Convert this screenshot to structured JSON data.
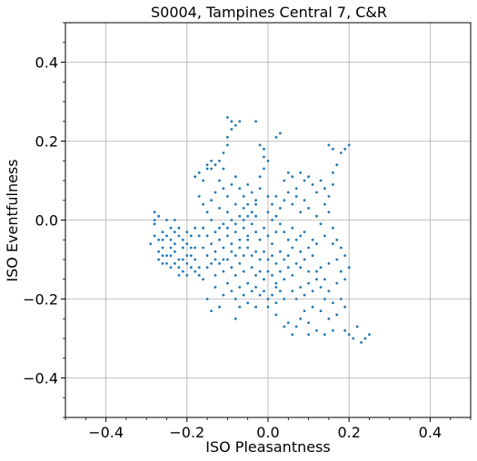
{
  "chart_data": {
    "type": "scatter",
    "title": "S0004, Tampines Central 7, C&R",
    "xlabel": "ISO Pleasantness",
    "ylabel": "ISO Eventfulness",
    "xlim": [
      -0.5,
      0.5
    ],
    "ylim": [
      -0.5,
      0.5
    ],
    "xticks": [
      -0.4,
      -0.2,
      0.0,
      0.2,
      0.4
    ],
    "yticks": [
      -0.4,
      -0.2,
      0.0,
      0.2,
      0.4
    ],
    "xtick_labels": [
      "−0.4",
      "−0.2",
      "0.0",
      "0.2",
      "0.4"
    ],
    "ytick_labels": [
      "−0.4",
      "−0.2",
      "0.0",
      "0.2",
      "0.4"
    ],
    "grid": true,
    "color": "#1f77b4",
    "points": [
      [
        -0.28,
        0.02
      ],
      [
        -0.27,
        0.01
      ],
      [
        -0.28,
        -0.01
      ],
      [
        -0.26,
        -0.03
      ],
      [
        -0.25,
        0.0
      ],
      [
        -0.29,
        -0.06
      ],
      [
        -0.27,
        -0.08
      ],
      [
        -0.26,
        -0.05
      ],
      [
        -0.24,
        -0.02
      ],
      [
        -0.23,
        0.0
      ],
      [
        -0.25,
        -0.09
      ],
      [
        -0.23,
        -0.06
      ],
      [
        -0.22,
        -0.04
      ],
      [
        -0.21,
        -0.07
      ],
      [
        -0.22,
        -0.1
      ],
      [
        -0.24,
        -0.12
      ],
      [
        -0.2,
        -0.09
      ],
      [
        -0.19,
        -0.12
      ],
      [
        -0.21,
        -0.13
      ],
      [
        -0.23,
        -0.11
      ],
      [
        -0.18,
        -0.1
      ],
      [
        -0.19,
        -0.07
      ],
      [
        -0.2,
        -0.03
      ],
      [
        -0.27,
        -0.1
      ],
      [
        -0.28,
        -0.04
      ],
      [
        -0.26,
        -0.07
      ],
      [
        -0.25,
        -0.04
      ],
      [
        -0.24,
        -0.07
      ],
      [
        -0.23,
        -0.08
      ],
      [
        -0.22,
        -0.12
      ],
      [
        -0.21,
        -0.1
      ],
      [
        -0.2,
        -0.14
      ],
      [
        -0.18,
        -0.13
      ],
      [
        -0.17,
        -0.12
      ],
      [
        -0.18,
        -0.07
      ],
      [
        -0.2,
        -0.06
      ],
      [
        -0.19,
        -0.04
      ],
      [
        -0.26,
        -0.09
      ],
      [
        -0.25,
        -0.11
      ],
      [
        -0.22,
        -0.14
      ],
      [
        -0.24,
        -0.05
      ],
      [
        -0.22,
        -0.02
      ],
      [
        -0.28,
        0.0
      ],
      [
        -0.27,
        -0.05
      ],
      [
        -0.26,
        -0.11
      ],
      [
        -0.24,
        -0.09
      ],
      [
        -0.21,
        -0.05
      ],
      [
        -0.19,
        -0.09
      ],
      [
        -0.23,
        -0.03
      ],
      [
        -0.2,
        -0.11
      ],
      [
        -0.15,
        0.14
      ],
      [
        -0.14,
        0.15
      ],
      [
        -0.15,
        0.13
      ],
      [
        -0.14,
        0.13
      ],
      [
        -0.13,
        0.14
      ],
      [
        -0.16,
        0.1
      ],
      [
        -0.17,
        0.12
      ],
      [
        -0.18,
        0.11
      ],
      [
        -0.1,
        0.26
      ],
      [
        -0.09,
        0.25
      ],
      [
        -0.08,
        0.24
      ],
      [
        -0.07,
        0.25
      ],
      [
        -0.09,
        0.23
      ],
      [
        -0.1,
        0.21
      ],
      [
        -0.1,
        0.19
      ],
      [
        -0.11,
        0.17
      ],
      [
        -0.12,
        0.15
      ],
      [
        -0.11,
        0.13
      ],
      [
        -0.03,
        0.25
      ],
      [
        -0.02,
        0.19
      ],
      [
        -0.01,
        0.18
      ],
      [
        -0.01,
        0.16
      ],
      [
        0.0,
        0.15
      ],
      [
        -0.01,
        0.13
      ],
      [
        -0.02,
        0.11
      ],
      [
        0.03,
        0.22
      ],
      [
        0.02,
        0.21
      ],
      [
        0.15,
        0.19
      ],
      [
        0.16,
        0.18
      ],
      [
        0.18,
        0.17
      ],
      [
        0.2,
        0.19
      ],
      [
        0.19,
        0.18
      ],
      [
        0.17,
        0.14
      ],
      [
        0.16,
        0.12
      ],
      [
        0.16,
        0.09
      ],
      [
        0.15,
        0.06
      ],
      [
        0.14,
        0.08
      ],
      [
        0.1,
        0.11
      ],
      [
        0.09,
        0.1
      ],
      [
        0.08,
        0.12
      ],
      [
        0.11,
        0.09
      ],
      [
        0.13,
        0.1
      ],
      [
        0.12,
        0.07
      ],
      [
        0.06,
        0.11
      ],
      [
        0.07,
        0.08
      ],
      [
        0.05,
        0.12
      ],
      [
        0.04,
        0.1
      ],
      [
        -0.12,
        0.1
      ],
      [
        -0.11,
        0.08
      ],
      [
        -0.1,
        0.06
      ],
      [
        -0.13,
        0.07
      ],
      [
        -0.09,
        0.09
      ],
      [
        -0.08,
        0.11
      ],
      [
        -0.07,
        0.08
      ],
      [
        -0.06,
        0.06
      ],
      [
        -0.05,
        0.09
      ],
      [
        -0.04,
        0.07
      ],
      [
        -0.17,
        0.06
      ],
      [
        -0.16,
        0.04
      ],
      [
        -0.15,
        0.02
      ],
      [
        -0.14,
        0.05
      ],
      [
        -0.12,
        0.03
      ],
      [
        -0.1,
        0.02
      ],
      [
        -0.08,
        0.04
      ],
      [
        -0.06,
        0.03
      ],
      [
        -0.05,
        0.01
      ],
      [
        -0.03,
        0.04
      ],
      [
        0.0,
        0.06
      ],
      [
        0.01,
        0.04
      ],
      [
        0.02,
        0.01
      ],
      [
        0.03,
        0.03
      ],
      [
        0.04,
        0.05
      ],
      [
        0.06,
        0.04
      ],
      [
        0.08,
        0.02
      ],
      [
        0.1,
        0.03
      ],
      [
        0.12,
        0.01
      ],
      [
        0.13,
        -0.01
      ],
      [
        -0.06,
        -0.02
      ],
      [
        -0.05,
        -0.04
      ],
      [
        -0.04,
        -0.01
      ],
      [
        -0.03,
        -0.03
      ],
      [
        -0.02,
        -0.05
      ],
      [
        -0.01,
        -0.02
      ],
      [
        0.0,
        -0.04
      ],
      [
        0.01,
        -0.06
      ],
      [
        0.02,
        -0.03
      ],
      [
        -0.07,
        -0.05
      ],
      [
        -0.08,
        -0.03
      ],
      [
        -0.09,
        -0.06
      ],
      [
        -0.1,
        -0.04
      ],
      [
        -0.11,
        -0.07
      ],
      [
        -0.12,
        -0.05
      ],
      [
        -0.13,
        -0.08
      ],
      [
        -0.14,
        -0.06
      ],
      [
        -0.15,
        -0.09
      ],
      [
        -0.16,
        -0.07
      ],
      [
        -0.14,
        -0.11
      ],
      [
        -0.05,
        -0.07
      ],
      [
        -0.04,
        -0.09
      ],
      [
        -0.03,
        -0.08
      ],
      [
        -0.02,
        -0.1
      ],
      [
        -0.01,
        -0.08
      ],
      [
        0.0,
        -0.1
      ],
      [
        0.01,
        -0.09
      ],
      [
        0.02,
        -0.11
      ],
      [
        0.03,
        -0.08
      ],
      [
        0.04,
        -0.1
      ],
      [
        -0.06,
        -0.09
      ],
      [
        -0.07,
        -0.11
      ],
      [
        -0.08,
        -0.09
      ],
      [
        -0.09,
        -0.12
      ],
      [
        -0.1,
        -0.1
      ],
      [
        -0.11,
        -0.13
      ],
      [
        -0.12,
        -0.11
      ],
      [
        -0.13,
        -0.14
      ],
      [
        -0.08,
        -0.14
      ],
      [
        -0.06,
        -0.13
      ],
      [
        -0.04,
        -0.12
      ],
      [
        -0.03,
        -0.14
      ],
      [
        -0.02,
        -0.13
      ],
      [
        -0.01,
        -0.15
      ],
      [
        0.0,
        -0.13
      ],
      [
        0.01,
        -0.14
      ],
      [
        0.02,
        -0.16
      ],
      [
        0.03,
        -0.13
      ],
      [
        0.04,
        -0.15
      ],
      [
        0.05,
        -0.12
      ],
      [
        0.06,
        -0.14
      ],
      [
        0.07,
        -0.11
      ],
      [
        0.05,
        -0.09
      ],
      [
        0.06,
        -0.07
      ],
      [
        0.07,
        -0.05
      ],
      [
        0.08,
        -0.08
      ],
      [
        0.09,
        -0.1
      ],
      [
        0.1,
        -0.07
      ],
      [
        0.11,
        -0.09
      ],
      [
        0.12,
        -0.06
      ],
      [
        -0.05,
        -0.16
      ],
      [
        -0.04,
        -0.18
      ],
      [
        -0.03,
        -0.17
      ],
      [
        -0.02,
        -0.19
      ],
      [
        -0.01,
        -0.18
      ],
      [
        0.0,
        -0.2
      ],
      [
        0.01,
        -0.19
      ],
      [
        0.02,
        -0.17
      ],
      [
        0.03,
        -0.18
      ],
      [
        -0.06,
        -0.19
      ],
      [
        -0.07,
        -0.17
      ],
      [
        -0.08,
        -0.2
      ],
      [
        -0.09,
        -0.18
      ],
      [
        -0.1,
        -0.16
      ],
      [
        -0.11,
        -0.19
      ],
      [
        -0.07,
        -0.22
      ],
      [
        -0.05,
        -0.21
      ],
      [
        0.0,
        -0.22
      ],
      [
        0.02,
        -0.21
      ],
      [
        0.04,
        -0.2
      ],
      [
        0.06,
        -0.18
      ],
      [
        0.07,
        -0.2
      ],
      [
        0.08,
        -0.17
      ],
      [
        0.09,
        -0.19
      ],
      [
        0.1,
        -0.16
      ],
      [
        0.11,
        -0.18
      ],
      [
        0.12,
        -0.15
      ],
      [
        0.13,
        -0.17
      ],
      [
        0.14,
        -0.2
      ],
      [
        0.15,
        -0.18
      ],
      [
        0.16,
        -0.21
      ],
      [
        0.18,
        -0.2
      ],
      [
        0.19,
        -0.22
      ],
      [
        0.17,
        -0.24
      ],
      [
        0.15,
        -0.25
      ],
      [
        0.13,
        -0.23
      ],
      [
        0.11,
        -0.22
      ],
      [
        0.09,
        -0.23
      ],
      [
        0.08,
        -0.25
      ],
      [
        0.1,
        -0.26
      ],
      [
        0.05,
        -0.26
      ],
      [
        0.07,
        -0.27
      ],
      [
        0.12,
        -0.28
      ],
      [
        0.14,
        -0.29
      ],
      [
        0.16,
        -0.28
      ],
      [
        0.19,
        -0.28
      ],
      [
        0.2,
        -0.29
      ],
      [
        0.22,
        -0.27
      ],
      [
        0.24,
        -0.3
      ],
      [
        0.25,
        -0.29
      ],
      [
        0.23,
        -0.31
      ],
      [
        0.21,
        -0.3
      ],
      [
        0.1,
        -0.29
      ],
      [
        0.06,
        -0.29
      ],
      [
        0.04,
        -0.27
      ],
      [
        0.02,
        -0.24
      ],
      [
        -0.03,
        -0.22
      ],
      [
        -0.08,
        -0.25
      ],
      [
        -0.12,
        -0.22
      ],
      [
        -0.15,
        -0.2
      ],
      [
        -0.14,
        -0.23
      ],
      [
        -0.13,
        -0.17
      ],
      [
        -0.16,
        -0.15
      ],
      [
        -0.17,
        -0.14
      ],
      [
        -0.15,
        -0.12
      ],
      [
        -0.13,
        -0.1
      ],
      [
        -0.11,
        -0.1
      ],
      [
        -0.09,
        -0.08
      ],
      [
        -0.07,
        -0.07
      ],
      [
        -0.05,
        -0.05
      ],
      [
        0.14,
        0.04
      ],
      [
        0.15,
        0.02
      ],
      [
        0.16,
        -0.02
      ],
      [
        0.17,
        -0.05
      ],
      [
        0.18,
        -0.07
      ],
      [
        0.19,
        -0.09
      ],
      [
        0.16,
        -0.06
      ],
      [
        0.14,
        -0.04
      ],
      [
        0.13,
        -0.12
      ],
      [
        0.15,
        -0.11
      ],
      [
        0.17,
        -0.1
      ],
      [
        0.18,
        -0.13
      ],
      [
        0.2,
        -0.12
      ],
      [
        0.19,
        -0.15
      ],
      [
        0.17,
        -0.16
      ],
      [
        0.14,
        -0.15
      ],
      [
        0.12,
        -0.13
      ],
      [
        0.1,
        -0.13
      ],
      [
        0.08,
        -0.12
      ],
      [
        0.11,
        -0.05
      ],
      [
        -0.02,
        0.08
      ],
      [
        -0.03,
        0.01
      ],
      [
        0.02,
        0.06
      ],
      [
        0.05,
        0.07
      ],
      [
        0.07,
        0.06
      ],
      [
        0.09,
        0.05
      ],
      [
        -0.04,
        0.02
      ],
      [
        -0.06,
        0.0
      ],
      [
        -0.08,
        -0.01
      ],
      [
        -0.1,
        -0.02
      ],
      [
        -0.12,
        -0.02
      ],
      [
        -0.14,
        0.0
      ],
      [
        -0.16,
        -0.02
      ],
      [
        -0.17,
        -0.04
      ],
      [
        -0.18,
        -0.02
      ],
      [
        -0.15,
        -0.04
      ],
      [
        -0.13,
        -0.03
      ],
      [
        -0.11,
        -0.01
      ],
      [
        -0.09,
        0.0
      ],
      [
        -0.07,
        0.01
      ],
      [
        -0.05,
        0.04
      ],
      [
        -0.03,
        0.05
      ],
      [
        0.0,
        0.02
      ],
      [
        0.01,
        0.0
      ],
      [
        0.03,
        -0.01
      ],
      [
        0.04,
        -0.03
      ],
      [
        0.05,
        -0.05
      ],
      [
        0.06,
        -0.02
      ],
      [
        0.08,
        -0.04
      ],
      [
        0.09,
        -0.03
      ]
    ]
  }
}
